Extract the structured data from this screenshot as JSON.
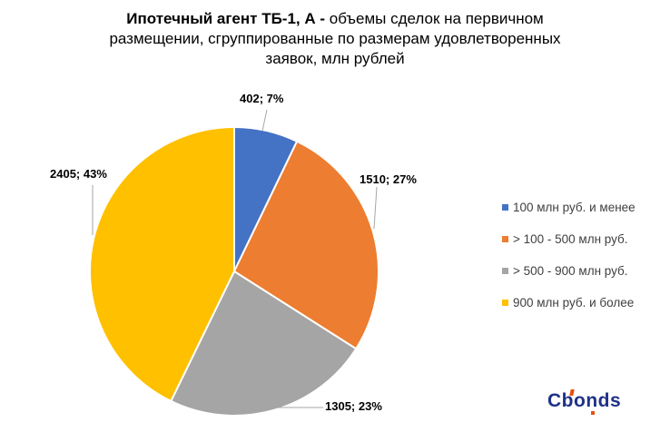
{
  "title": {
    "bold": "Ипотечный агент ТБ-1, А - ",
    "line1_rest": "объемы сделок на первичном",
    "line2": "размещении, сгруппированные по размерам удовлетворенных",
    "line3": "заявок, млн рублей"
  },
  "chart_data": {
    "type": "pie",
    "title": "Ипотечный агент ТБ-1, А - объемы сделок на первичном размещении, сгруппированные по размерам удовлетворенных заявок, млн рублей",
    "unit": "млн рублей",
    "categories": [
      "100 млн руб. и менее",
      "> 100 - 500 млн руб.",
      "> 500 - 900 млн руб.",
      "900 млн руб. и более"
    ],
    "values": [
      402,
      1510,
      1305,
      2405
    ],
    "percents": [
      7,
      27,
      23,
      43
    ],
    "labels": [
      "402; 7%",
      "1510; 27%",
      "1305; 23%",
      "2405; 43%"
    ],
    "colors": [
      "#4472C4",
      "#ED7D31",
      "#A5A5A5",
      "#FFC000"
    ],
    "slice_border_color": "#FFFFFF",
    "leader_line_color": "#A6A6A6",
    "legend_position": "right",
    "start_angle_deg": 0,
    "direction": "clockwise"
  },
  "legend": {
    "items": [
      {
        "label": "100 млн руб. и менее",
        "color": "#4472C4"
      },
      {
        "label": "> 100 - 500 млн руб.",
        "color": "#ED7D31"
      },
      {
        "label": "> 500 - 900 млн руб.",
        "color": "#A5A5A5"
      },
      {
        "label": "900 млн руб. и более",
        "color": "#FFC000"
      }
    ]
  },
  "logo": {
    "text": "Cbonds",
    "text_color": "#1F3287",
    "accent_color": "#E8500F"
  }
}
